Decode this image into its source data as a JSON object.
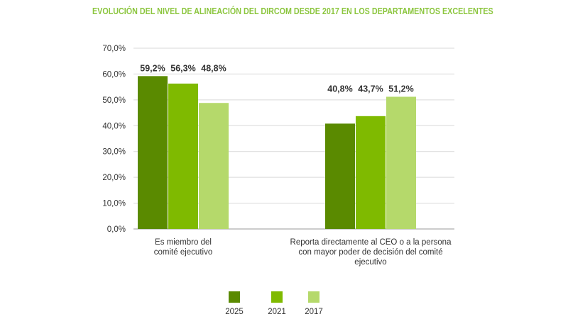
{
  "chart_data": {
    "type": "bar",
    "title": "EVOLUCIÓN DEL NIVEL DE ALINEACIÓN DEL DIRCOM DESDE 2017 EN LOS DEPARTAMENTOS EXCELENTES",
    "categories": [
      [
        "Es miembro del",
        "comité ejecutivo"
      ],
      [
        "Reporta directamente al CEO o a la persona",
        "con mayor poder de decisión del comité",
        "ejecutivo"
      ]
    ],
    "series": [
      {
        "name": "2025",
        "values": [
          59.2,
          40.8
        ],
        "labels": [
          "59,2%",
          "40,8%"
        ],
        "color": "#5a8a00"
      },
      {
        "name": "2021",
        "values": [
          56.3,
          43.7
        ],
        "labels": [
          "56,3%",
          "43,7%"
        ],
        "color": "#7fba00"
      },
      {
        "name": "2017",
        "values": [
          48.8,
          51.2
        ],
        "labels": [
          "48,8%",
          "51,2%"
        ],
        "color": "#b5d96b"
      }
    ],
    "ylim": [
      0,
      70
    ],
    "yticks": [
      "0,0%",
      "10,0%",
      "20,0%",
      "30,0%",
      "40,0%",
      "50,0%",
      "60,0%",
      "70,0%"
    ],
    "grid": true,
    "legend_position": "bottom"
  }
}
